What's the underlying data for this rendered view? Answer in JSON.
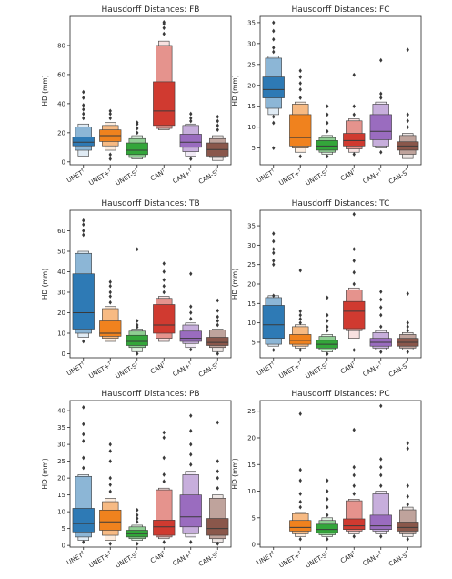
{
  "colors": {
    "UNET": "#2e7ab5",
    "UNET+": "#f0821e",
    "UNET-S": "#33a63a",
    "CAN": "#d03a30",
    "CAN+": "#9a6cbf",
    "CAN-S": "#8a574b"
  },
  "chart_data": [
    {
      "type": "box",
      "title": "Hausdorff Distances: FB",
      "ylabel": "HD (mm)",
      "ylim": [
        -2,
        100
      ],
      "yticks": [
        0,
        20,
        40,
        60,
        80
      ],
      "categories": [
        "UNET",
        "UNET+",
        "UNET-S",
        "CAN",
        "CAN+",
        "CAN-S"
      ],
      "boxes": [
        {
          "levels": [
            [
              11,
              17
            ],
            [
              8,
              24
            ],
            [
              4,
              26
            ]
          ],
          "median": 13.5,
          "outliers": [
            30,
            33,
            36,
            39,
            44,
            48
          ]
        },
        {
          "levels": [
            [
              14,
              22
            ],
            [
              11,
              25
            ],
            [
              8,
              27
            ]
          ],
          "median": 18,
          "outliers": [
            2,
            5,
            30,
            33,
            35
          ]
        },
        {
          "levels": [
            [
              5,
              13
            ],
            [
              3,
              16
            ],
            [
              2,
              18
            ]
          ],
          "median": 8,
          "outliers": [
            20,
            23,
            26,
            27
          ]
        },
        {
          "levels": [
            [
              25,
              55
            ],
            [
              23,
              80
            ],
            [
              22,
              83
            ]
          ],
          "median": 35,
          "outliers": [
            88,
            92,
            95,
            96
          ]
        },
        {
          "levels": [
            [
              10,
              19
            ],
            [
              7,
              25
            ],
            [
              4,
              26
            ]
          ],
          "median": 13.5,
          "outliers": [
            2,
            28,
            30,
            33
          ]
        },
        {
          "levels": [
            [
              4,
              13
            ],
            [
              3,
              16
            ],
            [
              1,
              18
            ]
          ],
          "median": 8.5,
          "outliers": [
            22,
            25,
            28,
            31
          ]
        }
      ]
    },
    {
      "type": "box",
      "title": "Hausdorff Distances: FC",
      "ylabel": "HD (mm)",
      "ylim": [
        1,
        36.5
      ],
      "yticks": [
        5,
        10,
        15,
        20,
        25,
        30,
        35
      ],
      "categories": [
        "UNET",
        "UNET+",
        "UNET-S",
        "CAN",
        "CAN+",
        "CAN-S"
      ],
      "boxes": [
        {
          "levels": [
            [
              17,
              22
            ],
            [
              14.5,
              26.5
            ],
            [
              13,
              27
            ]
          ],
          "median": 19,
          "outliers": [
            5,
            11,
            12.5,
            28,
            29,
            31,
            33,
            35
          ]
        },
        {
          "levels": [
            [
              5.5,
              13
            ],
            [
              5,
              15.5
            ],
            [
              4,
              16
            ]
          ],
          "median": 7.5,
          "outliers": [
            3,
            17,
            19,
            20.5,
            22,
            23.5
          ]
        },
        {
          "levels": [
            [
              4.5,
              6.8
            ],
            [
              4,
              7.5
            ],
            [
              3.5,
              8
            ]
          ],
          "median": 5.5,
          "outliers": [
            3,
            9,
            11,
            13,
            15
          ]
        },
        {
          "levels": [
            [
              5.5,
              8.5
            ],
            [
              4.8,
              11.5
            ],
            [
              4,
              12
            ]
          ],
          "median": 6.8,
          "outliers": [
            3.5,
            13,
            15,
            22.5
          ]
        },
        {
          "levels": [
            [
              7,
              13
            ],
            [
              5.5,
              15.5
            ],
            [
              5,
              16
            ]
          ],
          "median": 9,
          "outliers": [
            4,
            17,
            18,
            26
          ]
        },
        {
          "levels": [
            [
              4.5,
              6.5
            ],
            [
              3.5,
              8
            ],
            [
              2.5,
              8.5
            ]
          ],
          "median": 5.5,
          "outliers": [
            10,
            11.5,
            13,
            28.5
          ]
        }
      ]
    },
    {
      "type": "box",
      "title": "Hausdorff Distances: TB",
      "ylabel": "HD (mm)",
      "ylim": [
        -2,
        70
      ],
      "yticks": [
        0,
        10,
        20,
        30,
        40,
        50,
        60
      ],
      "categories": [
        "UNET",
        "UNET+",
        "UNET-S",
        "CAN",
        "CAN+",
        "CAN-S"
      ],
      "boxes": [
        {
          "levels": [
            [
              12,
              39
            ],
            [
              10,
              49
            ],
            [
              8,
              50
            ]
          ],
          "median": 20,
          "outliers": [
            6,
            58,
            60,
            63,
            65
          ]
        },
        {
          "levels": [
            [
              8.5,
              16
            ],
            [
              7.5,
              22
            ],
            [
              6,
              23
            ]
          ],
          "median": 10,
          "outliers": [
            25,
            28,
            30,
            33,
            35
          ]
        },
        {
          "levels": [
            [
              4,
              9
            ],
            [
              3,
              11
            ],
            [
              1,
              12
            ]
          ],
          "median": 6,
          "outliers": [
            0,
            13,
            14,
            16,
            51
          ]
        },
        {
          "levels": [
            [
              10,
              24
            ],
            [
              7.5,
              27
            ],
            [
              6,
              28
            ]
          ],
          "median": 14,
          "outliers": [
            30,
            33,
            36,
            40,
            44
          ]
        },
        {
          "levels": [
            [
              6,
              11
            ],
            [
              5,
              14
            ],
            [
              3,
              15
            ]
          ],
          "median": 7.5,
          "outliers": [
            2,
            17,
            20,
            23,
            39
          ]
        },
        {
          "levels": [
            [
              4,
              8
            ],
            [
              3,
              11.5
            ],
            [
              1,
              12
            ]
          ],
          "median": 5.5,
          "outliers": [
            0,
            14,
            16,
            18,
            21,
            26
          ]
        }
      ]
    },
    {
      "type": "box",
      "title": "Hausdorff Distances: TC",
      "ylabel": "HD (mm)",
      "ylim": [
        1,
        39
      ],
      "yticks": [
        5,
        10,
        15,
        20,
        25,
        30,
        35
      ],
      "categories": [
        "UNET",
        "UNET+",
        "UNET-S",
        "CAN",
        "CAN+",
        "CAN-S"
      ],
      "boxes": [
        {
          "levels": [
            [
              6,
              14.5
            ],
            [
              4.5,
              16.5
            ],
            [
              4,
              17
            ]
          ],
          "median": 9.5,
          "outliers": [
            3,
            17,
            25,
            26,
            28,
            29,
            31,
            33
          ]
        },
        {
          "levels": [
            [
              4.5,
              7
            ],
            [
              4,
              9
            ],
            [
              3.5,
              9.5
            ]
          ],
          "median": 5.5,
          "outliers": [
            3,
            10,
            11,
            12,
            13,
            23.5
          ]
        },
        {
          "levels": [
            [
              3.5,
              5.5
            ],
            [
              3,
              6.5
            ],
            [
              2.5,
              7
            ]
          ],
          "median": 4.5,
          "outliers": [
            2,
            8,
            9,
            10.5,
            12,
            16.5
          ]
        },
        {
          "levels": [
            [
              8.5,
              15.5
            ],
            [
              8,
              18.5
            ],
            [
              6,
              19
            ]
          ],
          "median": 13,
          "outliers": [
            3,
            20,
            23,
            26,
            29,
            38
          ]
        },
        {
          "levels": [
            [
              4,
              6
            ],
            [
              3.5,
              7.5
            ],
            [
              3,
              8
            ]
          ],
          "median": 5,
          "outliers": [
            2.5,
            9,
            12,
            14,
            16,
            18
          ]
        },
        {
          "levels": [
            [
              4,
              6
            ],
            [
              3.5,
              7
            ],
            [
              3,
              7.5
            ]
          ],
          "median": 5,
          "outliers": [
            2.5,
            8,
            9,
            10,
            17.5
          ]
        }
      ]
    },
    {
      "type": "box",
      "title": "Hausdorff Distances: PB",
      "ylabel": "HD (mm)",
      "ylim": [
        -0.5,
        43
      ],
      "yticks": [
        0,
        5,
        10,
        15,
        20,
        25,
        30,
        35,
        40
      ],
      "categories": [
        "UNET",
        "UNET+",
        "UNET-S",
        "CAN",
        "CAN+",
        "CAN-S"
      ],
      "boxes": [
        {
          "levels": [
            [
              4,
              11
            ],
            [
              2.5,
              20.5
            ],
            [
              1.5,
              21
            ]
          ],
          "median": 6.5,
          "outliers": [
            1,
            23,
            26,
            31,
            33,
            36,
            41
          ]
        },
        {
          "levels": [
            [
              4.5,
              10.5
            ],
            [
              3,
              13
            ],
            [
              1.5,
              14
            ]
          ],
          "median": 7,
          "outliers": [
            0.5,
            16,
            18,
            20,
            25,
            28,
            30
          ]
        },
        {
          "levels": [
            [
              2.5,
              4.5
            ],
            [
              2,
              5.5
            ],
            [
              1.5,
              6
            ]
          ],
          "median": 3.5,
          "outliers": [
            0.5,
            7,
            8,
            9,
            10.5
          ]
        },
        {
          "levels": [
            [
              3,
              7.5
            ],
            [
              2.5,
              16.5
            ],
            [
              2,
              17
            ]
          ],
          "median": 5.5,
          "outliers": [
            1,
            19,
            21,
            26,
            32,
            33.5
          ]
        },
        {
          "levels": [
            [
              5.5,
              15
            ],
            [
              3.5,
              21
            ],
            [
              2.5,
              22
            ]
          ],
          "median": 8.5,
          "outliers": [
            1,
            24,
            27,
            30,
            34,
            38.5
          ]
        },
        {
          "levels": [
            [
              3,
              8
            ],
            [
              2,
              14
            ],
            [
              1,
              15
            ]
          ],
          "median": 5,
          "outliers": [
            0.5,
            17,
            20,
            22,
            25,
            36.5
          ]
        }
      ]
    },
    {
      "type": "box",
      "title": "Hausdorff Distances: PC",
      "ylabel": "HD (mm)",
      "ylim": [
        -0.5,
        27
      ],
      "yticks": [
        0,
        5,
        10,
        15,
        20,
        25
      ],
      "categories": [
        "UNET",
        "UNET+",
        "UNET-S",
        "CAN",
        "CAN+",
        "CAN-S"
      ],
      "boxes": [
        null,
        {
          "levels": [
            [
              2.5,
              4.5
            ],
            [
              2,
              5.8
            ],
            [
              1.5,
              6
            ]
          ],
          "median": 3.2,
          "outliers": [
            1,
            7,
            8,
            9.5,
            12,
            14,
            24.5
          ]
        },
        {
          "levels": [
            [
              2.2,
              3.8
            ],
            [
              1.8,
              4.5
            ],
            [
              1.5,
              5
            ]
          ],
          "median": 2.8,
          "outliers": [
            1,
            5.5,
            7,
            8.5,
            10,
            12
          ]
        },
        {
          "levels": [
            [
              2.8,
              4.8
            ],
            [
              2.5,
              8.2
            ],
            [
              2,
              8.5
            ]
          ],
          "median": 3.5,
          "outliers": [
            1.5,
            9.5,
            11,
            13,
            14.5,
            21.5
          ]
        },
        {
          "levels": [
            [
              2.8,
              5.5
            ],
            [
              2.5,
              9.5
            ],
            [
              2,
              10
            ]
          ],
          "median": 3.5,
          "outliers": [
            1.5,
            11,
            13,
            14.5,
            16,
            26
          ]
        },
        {
          "levels": [
            [
              2.5,
              4.2
            ],
            [
              2,
              6.5
            ],
            [
              1.5,
              7
            ]
          ],
          "median": 3.2,
          "outliers": [
            1,
            7.5,
            9,
            11,
            18,
            19
          ]
        }
      ]
    }
  ]
}
